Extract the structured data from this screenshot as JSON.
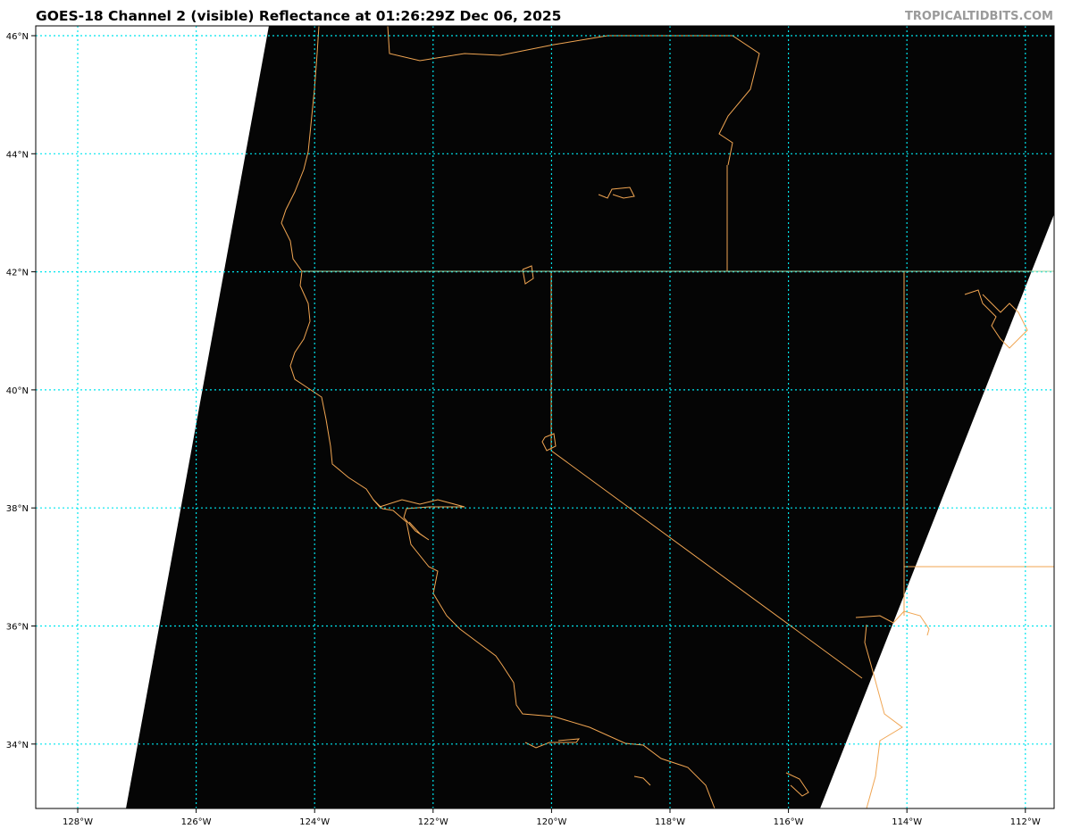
{
  "title": "GOES-18 Channel 2 (visible) Reflectance at 01:26:29Z Dec 06, 2025",
  "credit": "TROPICALTIDBITS.COM",
  "map": {
    "satellite": "GOES-18",
    "channel": "Channel 2 (visible)",
    "lon_ticks": [
      "128°W",
      "126°W",
      "124°W",
      "122°W",
      "120°W",
      "118°W",
      "116°W",
      "114°W",
      "112°W"
    ],
    "lat_ticks": [
      "46°N",
      "44°N",
      "42°N",
      "40°N",
      "38°N",
      "36°N",
      "34°N"
    ],
    "colors": {
      "imagery": "#050505",
      "coastline": "#f0a552",
      "gridlines": "#00e5ee",
      "no_data": "#ffffff"
    }
  }
}
